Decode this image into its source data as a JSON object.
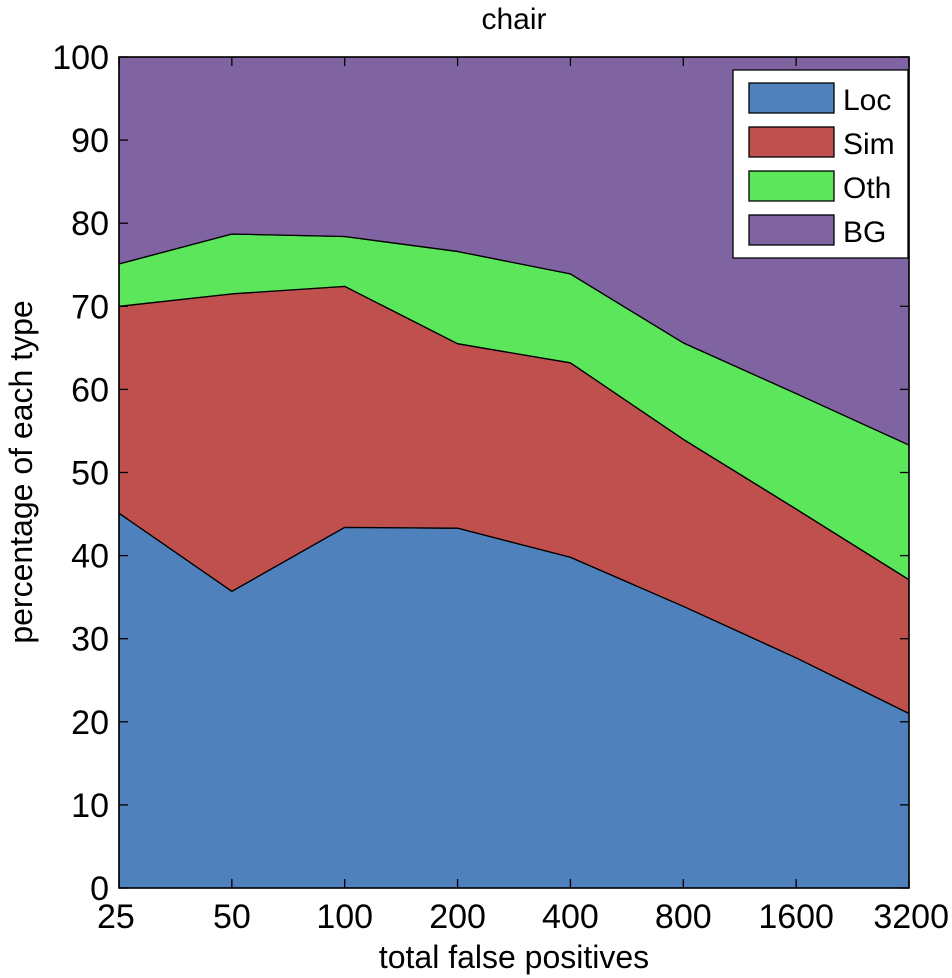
{
  "chart_data": {
    "type": "area",
    "stacked": true,
    "title": "chair",
    "xlabel": "total false positives",
    "ylabel": "percentage of each type",
    "categories": [
      "25",
      "50",
      "100",
      "200",
      "400",
      "800",
      "1600",
      "3200"
    ],
    "ylim": [
      0,
      100
    ],
    "yticks": [
      "0",
      "10",
      "20",
      "30",
      "40",
      "50",
      "60",
      "70",
      "80",
      "90",
      "100"
    ],
    "legend_position": "top-right",
    "series": [
      {
        "name": "Loc",
        "color": "#4f81bd",
        "cumulative": [
          45.1,
          35.7,
          43.4,
          43.3,
          39.8,
          33.9,
          27.7,
          21.0
        ]
      },
      {
        "name": "Sim",
        "color": "#c0504d",
        "cumulative": [
          70.0,
          71.5,
          72.4,
          65.5,
          63.2,
          54.0,
          45.6,
          37.1
        ]
      },
      {
        "name": "Oth",
        "color": "#5ce65c",
        "cumulative": [
          75.1,
          78.7,
          78.4,
          76.6,
          73.9,
          65.6,
          59.5,
          53.3
        ]
      },
      {
        "name": "BG",
        "color": "#8064a2",
        "cumulative": [
          100,
          100,
          100,
          100,
          100,
          100,
          100,
          100
        ]
      }
    ]
  }
}
